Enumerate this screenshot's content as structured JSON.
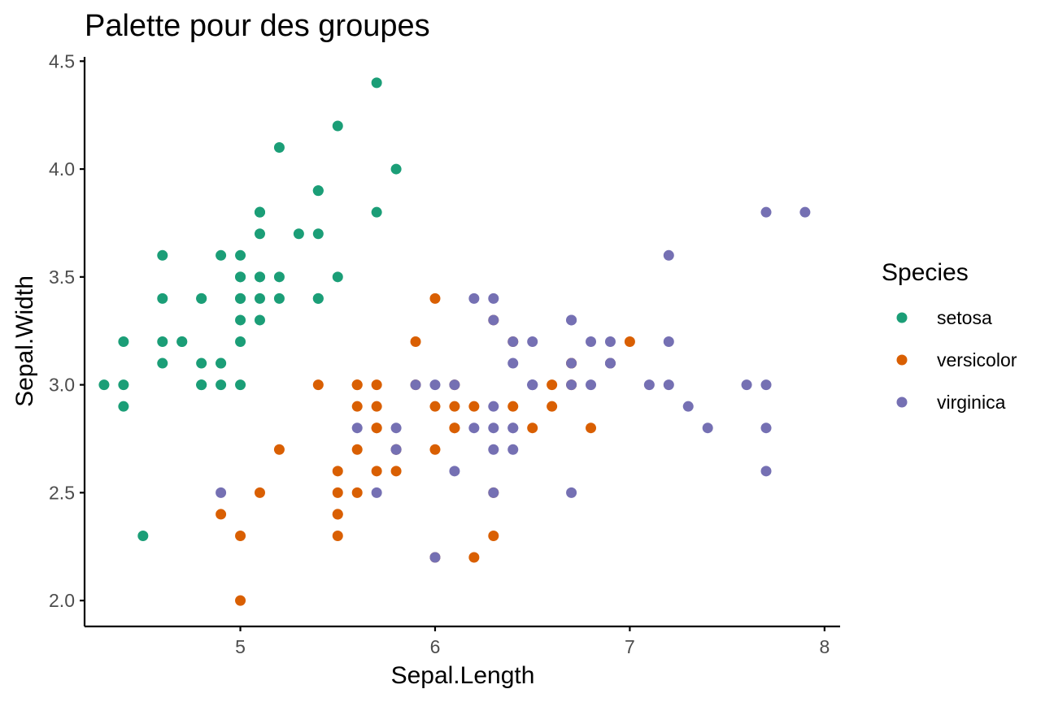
{
  "colors": {
    "setosa": "#1b9e77",
    "versicolor": "#d95f02",
    "virginica": "#7570b3",
    "axis": "#000000",
    "tick_text": "#4d4d4d"
  },
  "chart_data": {
    "type": "scatter",
    "title": "Palette pour des groupes",
    "xlabel": "Sepal.Length",
    "ylabel": "Sepal.Width",
    "xlim": [
      4.2,
      8.08
    ],
    "ylim": [
      1.88,
      4.52
    ],
    "xticks": [
      5,
      6,
      7,
      8
    ],
    "yticks": [
      2.0,
      2.5,
      3.0,
      3.5,
      4.0,
      4.5
    ],
    "xtick_labels": [
      "5",
      "6",
      "7",
      "8"
    ],
    "ytick_labels": [
      "2.0",
      "2.5",
      "3.0",
      "3.5",
      "4.0",
      "4.5"
    ],
    "grid": false,
    "legend": {
      "title": "Species",
      "placement": "right"
    },
    "series": [
      {
        "name": "setosa",
        "color": "#1b9e77",
        "points": [
          [
            5.1,
            3.5
          ],
          [
            4.9,
            3.0
          ],
          [
            4.7,
            3.2
          ],
          [
            4.6,
            3.1
          ],
          [
            5.0,
            3.6
          ],
          [
            5.4,
            3.9
          ],
          [
            4.6,
            3.4
          ],
          [
            5.0,
            3.4
          ],
          [
            4.4,
            2.9
          ],
          [
            4.9,
            3.1
          ],
          [
            5.4,
            3.7
          ],
          [
            4.8,
            3.4
          ],
          [
            4.8,
            3.0
          ],
          [
            4.3,
            3.0
          ],
          [
            5.8,
            4.0
          ],
          [
            5.7,
            4.4
          ],
          [
            5.4,
            3.9
          ],
          [
            5.1,
            3.5
          ],
          [
            5.7,
            3.8
          ],
          [
            5.1,
            3.8
          ],
          [
            5.4,
            3.4
          ],
          [
            5.1,
            3.7
          ],
          [
            4.6,
            3.6
          ],
          [
            5.1,
            3.3
          ],
          [
            4.8,
            3.4
          ],
          [
            5.0,
            3.0
          ],
          [
            5.0,
            3.4
          ],
          [
            5.2,
            3.5
          ],
          [
            5.2,
            3.4
          ],
          [
            4.7,
            3.2
          ],
          [
            4.8,
            3.1
          ],
          [
            5.4,
            3.4
          ],
          [
            5.2,
            4.1
          ],
          [
            5.5,
            4.2
          ],
          [
            4.9,
            3.1
          ],
          [
            5.0,
            3.2
          ],
          [
            5.5,
            3.5
          ],
          [
            4.9,
            3.6
          ],
          [
            4.4,
            3.0
          ],
          [
            5.1,
            3.4
          ],
          [
            5.0,
            3.5
          ],
          [
            4.5,
            2.3
          ],
          [
            4.4,
            3.2
          ],
          [
            5.0,
            3.5
          ],
          [
            5.1,
            3.8
          ],
          [
            4.8,
            3.0
          ],
          [
            5.1,
            3.8
          ],
          [
            4.6,
            3.2
          ],
          [
            5.3,
            3.7
          ],
          [
            5.0,
            3.3
          ]
        ]
      },
      {
        "name": "versicolor",
        "color": "#d95f02",
        "points": [
          [
            7.0,
            3.2
          ],
          [
            6.4,
            3.2
          ],
          [
            6.9,
            3.1
          ],
          [
            5.5,
            2.3
          ],
          [
            6.5,
            2.8
          ],
          [
            5.7,
            2.8
          ],
          [
            6.3,
            3.3
          ],
          [
            4.9,
            2.4
          ],
          [
            6.6,
            2.9
          ],
          [
            5.2,
            2.7
          ],
          [
            5.0,
            2.0
          ],
          [
            5.9,
            3.0
          ],
          [
            6.0,
            2.2
          ],
          [
            6.1,
            2.9
          ],
          [
            5.6,
            2.9
          ],
          [
            6.7,
            3.1
          ],
          [
            5.6,
            3.0
          ],
          [
            5.8,
            2.7
          ],
          [
            6.2,
            2.2
          ],
          [
            5.6,
            2.5
          ],
          [
            5.9,
            3.2
          ],
          [
            6.1,
            2.8
          ],
          [
            6.3,
            2.5
          ],
          [
            6.1,
            2.8
          ],
          [
            6.4,
            2.9
          ],
          [
            6.6,
            3.0
          ],
          [
            6.8,
            2.8
          ],
          [
            6.7,
            3.0
          ],
          [
            6.0,
            2.9
          ],
          [
            5.7,
            2.6
          ],
          [
            5.5,
            2.4
          ],
          [
            5.5,
            2.4
          ],
          [
            5.8,
            2.7
          ],
          [
            6.0,
            2.7
          ],
          [
            5.4,
            3.0
          ],
          [
            6.0,
            3.4
          ],
          [
            6.7,
            3.1
          ],
          [
            6.3,
            2.3
          ],
          [
            5.6,
            3.0
          ],
          [
            5.5,
            2.5
          ],
          [
            5.5,
            2.6
          ],
          [
            6.1,
            3.0
          ],
          [
            5.8,
            2.6
          ],
          [
            5.0,
            2.3
          ],
          [
            5.6,
            2.7
          ],
          [
            5.7,
            3.0
          ],
          [
            5.7,
            2.9
          ],
          [
            6.2,
            2.9
          ],
          [
            5.1,
            2.5
          ],
          [
            5.7,
            2.8
          ]
        ]
      },
      {
        "name": "virginica",
        "color": "#7570b3",
        "points": [
          [
            6.3,
            3.3
          ],
          [
            5.8,
            2.7
          ],
          [
            7.1,
            3.0
          ],
          [
            6.3,
            2.9
          ],
          [
            6.5,
            3.0
          ],
          [
            7.6,
            3.0
          ],
          [
            4.9,
            2.5
          ],
          [
            7.3,
            2.9
          ],
          [
            6.7,
            2.5
          ],
          [
            7.2,
            3.6
          ],
          [
            6.5,
            3.2
          ],
          [
            6.4,
            2.7
          ],
          [
            6.8,
            3.0
          ],
          [
            5.7,
            2.5
          ],
          [
            5.8,
            2.8
          ],
          [
            6.4,
            3.2
          ],
          [
            6.5,
            3.0
          ],
          [
            7.7,
            3.8
          ],
          [
            7.7,
            2.6
          ],
          [
            6.0,
            2.2
          ],
          [
            6.9,
            3.2
          ],
          [
            5.6,
            2.8
          ],
          [
            7.7,
            2.8
          ],
          [
            6.3,
            2.7
          ],
          [
            6.7,
            3.3
          ],
          [
            7.2,
            3.2
          ],
          [
            6.2,
            2.8
          ],
          [
            6.1,
            3.0
          ],
          [
            6.4,
            2.8
          ],
          [
            7.2,
            3.0
          ],
          [
            7.4,
            2.8
          ],
          [
            7.9,
            3.8
          ],
          [
            6.4,
            2.8
          ],
          [
            6.3,
            2.8
          ],
          [
            6.1,
            2.6
          ],
          [
            7.7,
            3.0
          ],
          [
            6.3,
            3.4
          ],
          [
            6.4,
            3.1
          ],
          [
            6.0,
            3.0
          ],
          [
            6.9,
            3.1
          ],
          [
            6.7,
            3.1
          ],
          [
            6.9,
            3.1
          ],
          [
            5.8,
            2.7
          ],
          [
            6.8,
            3.2
          ],
          [
            6.7,
            3.3
          ],
          [
            6.7,
            3.0
          ],
          [
            6.3,
            2.5
          ],
          [
            6.5,
            3.0
          ],
          [
            6.2,
            3.4
          ],
          [
            5.9,
            3.0
          ]
        ]
      }
    ]
  }
}
